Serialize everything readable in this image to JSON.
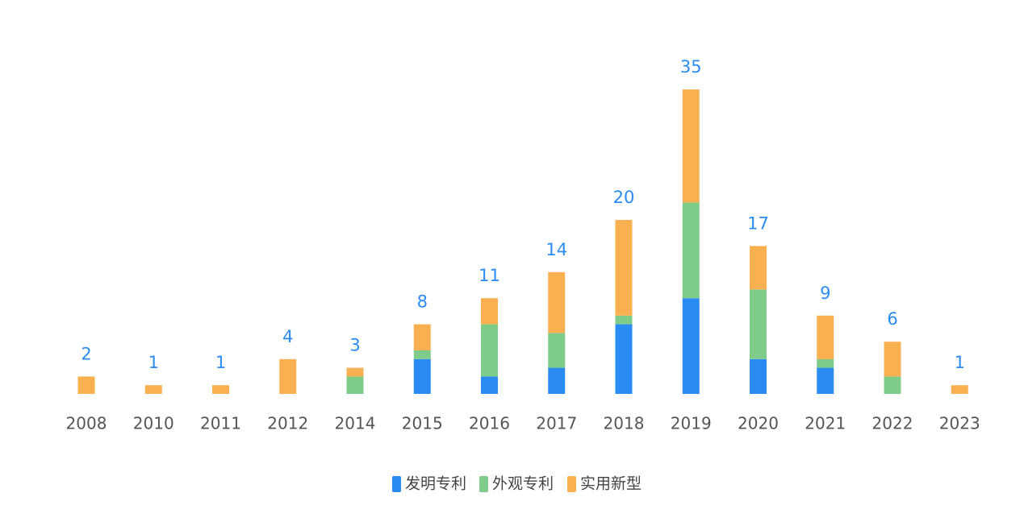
{
  "chart_data": {
    "type": "bar",
    "stacked": true,
    "categories": [
      "2008",
      "2010",
      "2011",
      "2012",
      "2014",
      "2015",
      "2016",
      "2017",
      "2018",
      "2019",
      "2020",
      "2021",
      "2022",
      "2023"
    ],
    "series": [
      {
        "name": "发明专利",
        "color": "#2a8cf3",
        "values": [
          0,
          0,
          0,
          0,
          0,
          4,
          2,
          3,
          8,
          11,
          4,
          3,
          0,
          0
        ]
      },
      {
        "name": "外观专利",
        "color": "#7fcb8a",
        "values": [
          0,
          0,
          0,
          0,
          2,
          1,
          6,
          4,
          1,
          11,
          8,
          1,
          2,
          0
        ]
      },
      {
        "name": "实用新型",
        "color": "#f8b050",
        "values": [
          2,
          1,
          1,
          4,
          1,
          3,
          3,
          7,
          11,
          13,
          5,
          5,
          4,
          1
        ]
      }
    ],
    "totals": [
      2,
      1,
      1,
      4,
      3,
      8,
      11,
      14,
      20,
      35,
      17,
      9,
      6,
      1
    ],
    "total_label_color": "#2a8cf3"
  }
}
